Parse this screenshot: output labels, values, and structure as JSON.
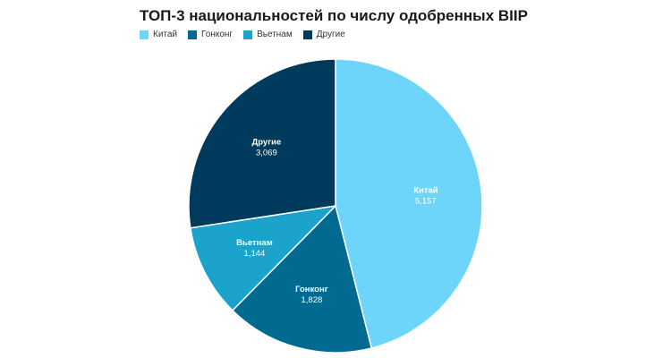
{
  "chart_data": {
    "type": "pie",
    "title": "ТОП-3 национальностей по числу одобренных BIIP",
    "categories": [
      "Китай",
      "Гонконг",
      "Вьетнам",
      "Другие"
    ],
    "values": [
      5157,
      1828,
      1144,
      3069
    ],
    "value_labels": [
      "5,157",
      "1,828",
      "1,144",
      "3,069"
    ],
    "colors": [
      "#6dd5fa",
      "#006a91",
      "#1ba3cc",
      "#003a5c"
    ],
    "legend_position": "top-left"
  }
}
